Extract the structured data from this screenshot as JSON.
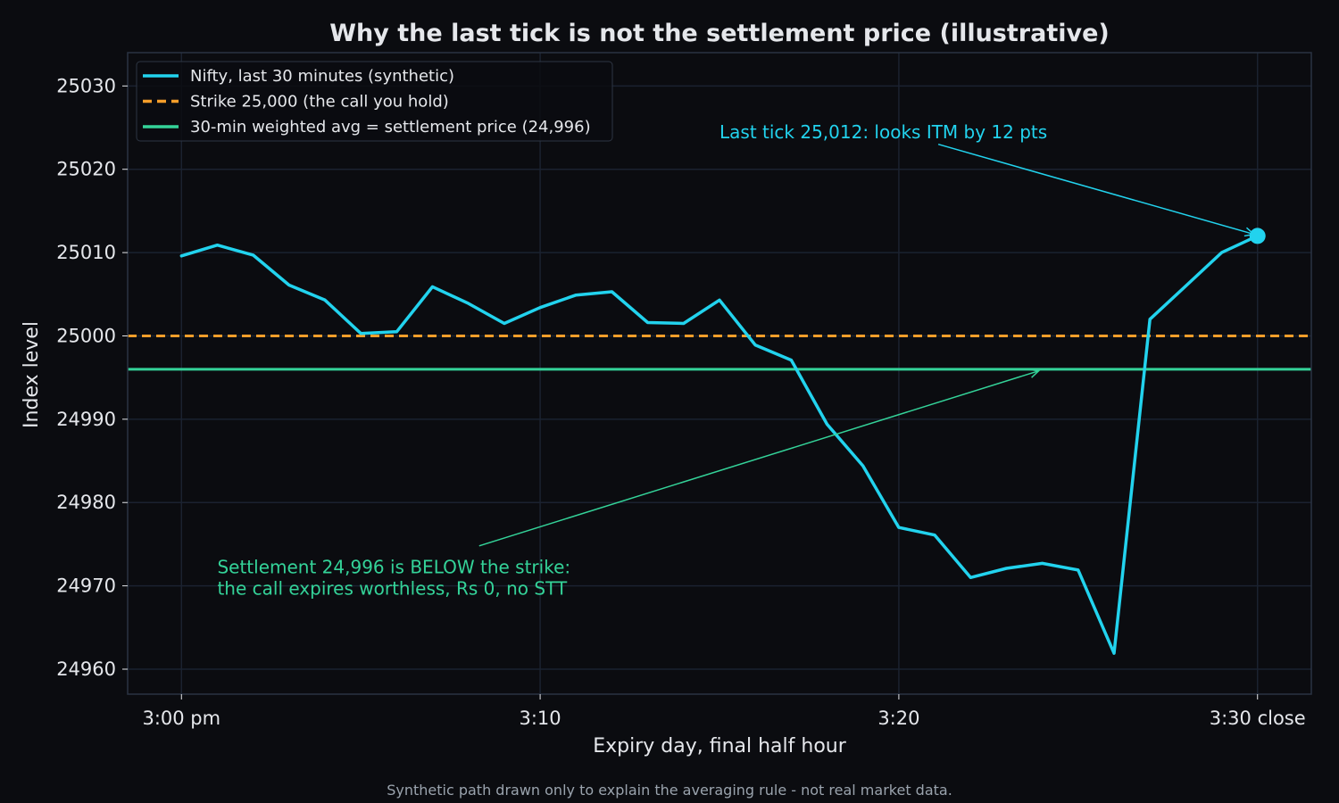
{
  "chart_data": {
    "type": "line",
    "title": "Why the last tick is not the settlement price (illustrative)",
    "xlabel": "Expiry day, final half hour",
    "ylabel": "Index level",
    "x_range": [
      -1.5,
      31.5
    ],
    "ylim": [
      24957,
      25034
    ],
    "x_ticks": [
      {
        "value": 0,
        "label": "3:00 pm"
      },
      {
        "value": 10,
        "label": "3:10"
      },
      {
        "value": 20,
        "label": "3:20"
      },
      {
        "value": 30,
        "label": "3:30 close"
      }
    ],
    "y_ticks": [
      24960,
      24970,
      24980,
      24990,
      25000,
      25010,
      25020,
      25030
    ],
    "grid": true,
    "legend_position": "top-left",
    "series": [
      {
        "name": "Nifty, last 30 minutes (synthetic)",
        "style": "solid",
        "color": "#22d3ee",
        "x": [
          0,
          1,
          2,
          3,
          4,
          5,
          6,
          7,
          8,
          9,
          10,
          11,
          12,
          13,
          14,
          15,
          16,
          17,
          18,
          19,
          20,
          21,
          22,
          23,
          24,
          25,
          26,
          27,
          28,
          29,
          30
        ],
        "values": [
          25009.6,
          25010.9,
          25009.7,
          25006.1,
          25004.3,
          25000.3,
          25000.5,
          25005.9,
          25003.9,
          25001.5,
          25003.4,
          25004.9,
          25005.3,
          25001.6,
          25001.5,
          25004.3,
          24998.9,
          24997.1,
          24989.4,
          24984.4,
          24977.0,
          24976.1,
          24971.0,
          24972.1,
          24972.7,
          24971.9,
          24961.9,
          25002.0,
          25006.0,
          25010.0,
          25012.0
        ]
      },
      {
        "name": "Strike 25,000 (the call you hold)",
        "style": "dashed",
        "color": "#f59e2a",
        "constant": 25000
      },
      {
        "name": "30-min weighted avg = settlement price (24,996)",
        "style": "solid",
        "color": "#34d399",
        "constant": 24996
      }
    ],
    "last_point": {
      "x": 30,
      "y": 25012
    },
    "annotations": [
      {
        "id": "last-tick",
        "lines": [
          "Last tick 25,012: looks ITM by 12 pts"
        ],
        "color": "#22d3ee",
        "text_at": [
          15,
          25023.7
        ],
        "arrow_from": [
          21.1,
          25023
        ],
        "arrow_to": [
          29.9,
          25012.2
        ]
      },
      {
        "id": "settlement",
        "lines": [
          "Settlement 24,996 is BELOW the strike:",
          "the call expires worthless, Rs 0, no STT"
        ],
        "color": "#34d399",
        "text_at": [
          1,
          24971.5
        ],
        "arrow_from": [
          8.3,
          24974.8
        ],
        "arrow_to": [
          23.9,
          24995.8
        ]
      }
    ],
    "footnote": "Synthetic path drawn only to explain the averaging rule - not real market data."
  },
  "colors": {
    "background": "#0b0c10",
    "plot_border": "#2a3342",
    "grid": "#1b2230",
    "text": "#e5e7eb",
    "footnote": "#9aa3ad"
  }
}
